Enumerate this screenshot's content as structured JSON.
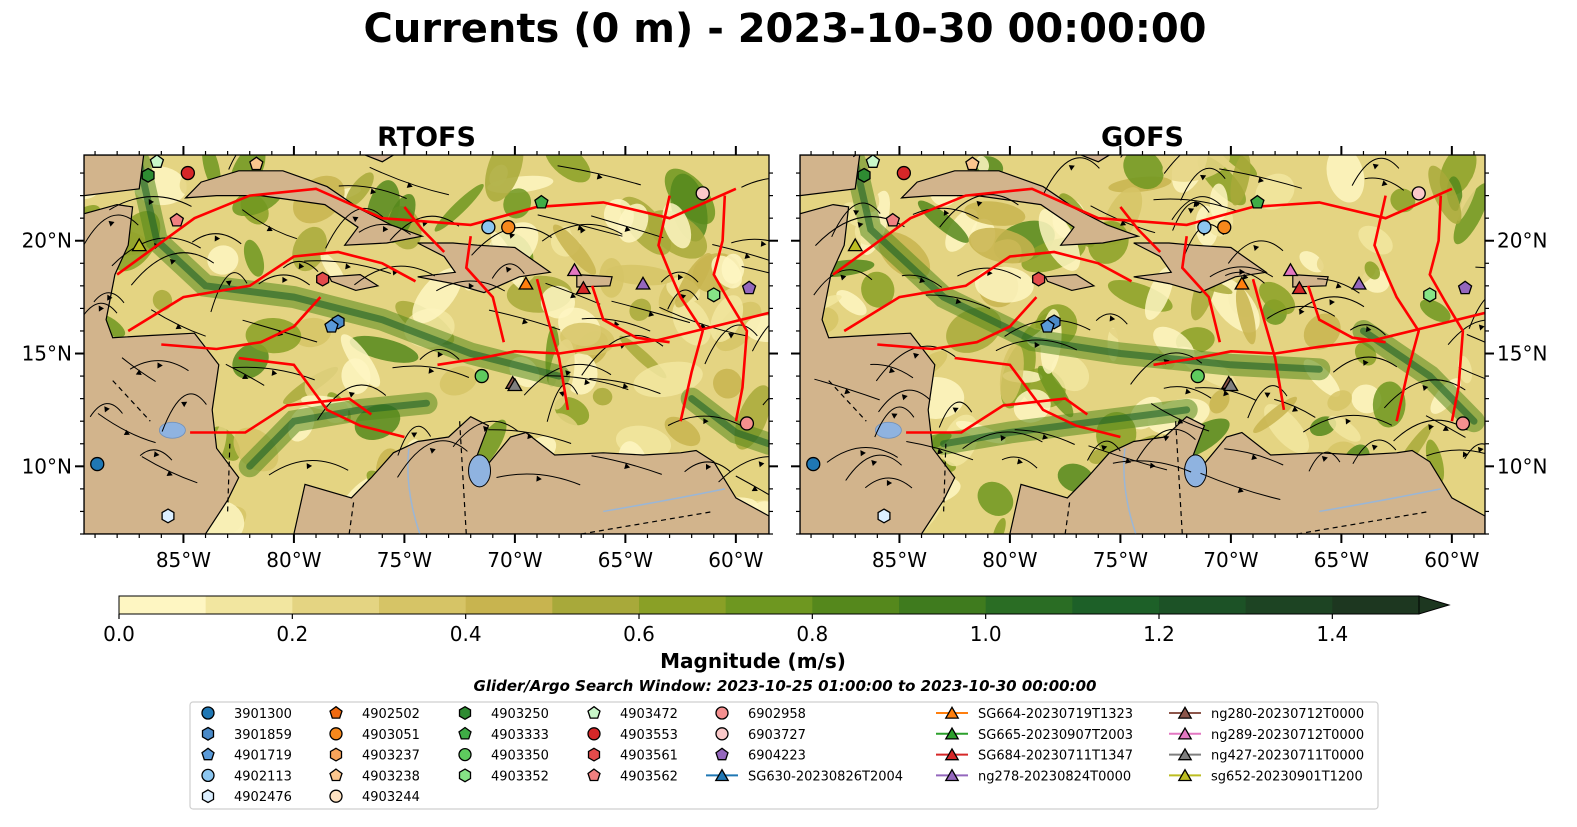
{
  "title": "Currents (0 m) - 2023-10-30 00:00:00",
  "colorbar": {
    "label": "Magnitude (m/s)",
    "ticks": [
      "0.0",
      "0.2",
      "0.4",
      "0.6",
      "0.8",
      "1.0",
      "1.2",
      "1.4"
    ],
    "levels": [
      0.0,
      0.1,
      0.2,
      0.3,
      0.4,
      0.5,
      0.6,
      0.7,
      0.8,
      0.9,
      1.0,
      1.1,
      1.2,
      1.3,
      1.4,
      1.5
    ],
    "colors": [
      "#fef6c2",
      "#f2e6a0",
      "#e4d482",
      "#d6c466",
      "#c8b44f",
      "#a8a93a",
      "#8aa026",
      "#6e9720",
      "#55881c",
      "#3f7b1e",
      "#2a6d24",
      "#1d6028",
      "#1c5226",
      "#1d4423",
      "#1d3720"
    ],
    "extend": "max"
  },
  "search_window": "Glider/Argo Search Window: 2023-10-25 01:00:00 to 2023-10-30 00:00:00",
  "map_style": {
    "land": "#d2b48c",
    "lakes": "#8fb3e0",
    "track": "#ff0000",
    "streamline": "#000000"
  },
  "chart_data": [
    {
      "type": "map",
      "title": "RTOFS",
      "xticks": [
        "85°W",
        "80°W",
        "75°W",
        "70°W",
        "65°W",
        "60°W"
      ],
      "yticks": [
        "20°N",
        "15°N",
        "10°N"
      ],
      "ytick_side": "left",
      "lon_range": [
        -89.5,
        -58.5
      ],
      "lat_range": [
        7.0,
        23.8
      ],
      "field": "sea-surface current magnitude (m/s) with streamlines"
    },
    {
      "type": "map",
      "title": "GOFS",
      "xticks": [
        "85°W",
        "80°W",
        "75°W",
        "70°W",
        "65°W",
        "60°W"
      ],
      "yticks": [
        "20°N",
        "15°N",
        "10°N"
      ],
      "ytick_side": "right",
      "lon_range": [
        -89.5,
        -58.5
      ],
      "lat_range": [
        7.0,
        23.8
      ],
      "field": "sea-surface current magnitude (m/s) with streamlines"
    }
  ],
  "platforms": [
    {
      "name": "3901300",
      "marker": "circle",
      "color": "#1f77b4",
      "lon": -88.9,
      "lat": 10.1
    },
    {
      "name": "3901859",
      "marker": "hexagon",
      "color": "#4a8ac8",
      "lon": -78.0,
      "lat": 16.4
    },
    {
      "name": "4901719",
      "marker": "pentagon",
      "color": "#5a9ad8",
      "lon": -78.3,
      "lat": 16.2
    },
    {
      "name": "4902113",
      "marker": "circle",
      "color": "#8cc6f0",
      "lon": -71.2,
      "lat": 20.6
    },
    {
      "name": "4902476",
      "marker": "hexagon",
      "color": "#dcefff",
      "lon": -85.7,
      "lat": 7.8
    },
    {
      "name": "4902502",
      "marker": "pentagon",
      "color": "#f06a10",
      "lon": 0,
      "lat": 0,
      "hidden": true
    },
    {
      "name": "4903051",
      "marker": "circle",
      "color": "#f7881c",
      "lon": -70.3,
      "lat": 20.6
    },
    {
      "name": "4903237",
      "marker": "hexagon",
      "color": "#f9a45a",
      "lon": 0,
      "lat": 0,
      "hidden": true
    },
    {
      "name": "4903238",
      "marker": "pentagon",
      "color": "#fbc68e",
      "lon": -81.7,
      "lat": 23.4
    },
    {
      "name": "4903244",
      "marker": "circle",
      "color": "#fde1c1",
      "lon": 0,
      "lat": 0,
      "hidden": true
    },
    {
      "name": "4903250",
      "marker": "hexagon",
      "color": "#2e8b32",
      "lon": -86.6,
      "lat": 22.9
    },
    {
      "name": "4903333",
      "marker": "pentagon",
      "color": "#3fad46",
      "lon": -68.8,
      "lat": 21.7
    },
    {
      "name": "4903350",
      "marker": "circle",
      "color": "#5ecb5e",
      "lon": -71.5,
      "lat": 14.0
    },
    {
      "name": "4903352",
      "marker": "hexagon",
      "color": "#86e486",
      "lon": -61.0,
      "lat": 17.6
    },
    {
      "name": "4903472",
      "marker": "pentagon",
      "color": "#c9f7c9",
      "lon": -86.2,
      "lat": 23.5
    },
    {
      "name": "4903553",
      "marker": "circle",
      "color": "#d62728",
      "lon": -84.8,
      "lat": 23.0
    },
    {
      "name": "4903561",
      "marker": "hexagon",
      "color": "#e34b4b",
      "lon": -78.7,
      "lat": 18.3
    },
    {
      "name": "4903562",
      "marker": "pentagon",
      "color": "#f08080",
      "lon": -85.3,
      "lat": 20.9
    },
    {
      "name": "6902958",
      "marker": "circle",
      "color": "#f58f8f",
      "lon": -59.5,
      "lat": 11.9
    },
    {
      "name": "6903727",
      "marker": "circle",
      "color": "#fbc9c9",
      "lon": -61.5,
      "lat": 22.1
    },
    {
      "name": "6904223",
      "marker": "pentagon",
      "color": "#9467bd",
      "lon": -59.4,
      "lat": 17.9
    },
    {
      "name": "SG630-20230826T2004",
      "marker": "triangle",
      "color": "#1f77b4",
      "line": true,
      "lon": 0,
      "lat": 0,
      "hidden": true
    },
    {
      "name": "SG664-20230719T1323",
      "marker": "triangle",
      "color": "#ff7f0e",
      "line": true,
      "lon": -69.5,
      "lat": 18.1
    },
    {
      "name": "SG665-20230907T2003",
      "marker": "triangle",
      "color": "#2ca02c",
      "line": true,
      "lon": 0,
      "lat": 0,
      "hidden": true
    },
    {
      "name": "SG684-20230711T1347",
      "marker": "triangle",
      "color": "#d62728",
      "line": true,
      "lon": -66.9,
      "lat": 17.9
    },
    {
      "name": "ng278-20230824T0000",
      "marker": "triangle",
      "color": "#9467bd",
      "line": true,
      "lon": -64.2,
      "lat": 18.1
    },
    {
      "name": "ng280-20230712T0000",
      "marker": "triangle",
      "color": "#8c564b",
      "line": true,
      "lon": -70.1,
      "lat": 13.7
    },
    {
      "name": "ng289-20230712T0000",
      "marker": "triangle",
      "color": "#e377c2",
      "line": true,
      "lon": -67.3,
      "lat": 18.7
    },
    {
      "name": "ng427-20230711T0000",
      "marker": "triangle",
      "color": "#7f7f7f",
      "line": true,
      "lon": -70.0,
      "lat": 13.6
    },
    {
      "name": "sg652-20230901T1200",
      "marker": "triangle",
      "color": "#bcbd22",
      "line": true,
      "lon": -87.0,
      "lat": 19.8
    }
  ]
}
